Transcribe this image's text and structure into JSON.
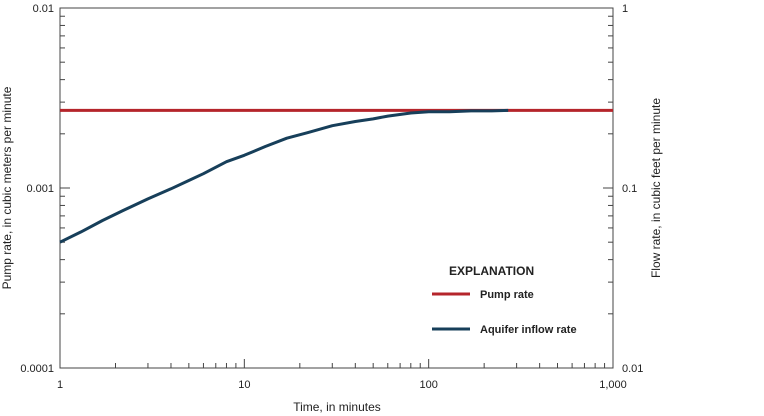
{
  "chart_data": {
    "type": "line",
    "x_scale": "log",
    "y_scale": "log",
    "xlim": [
      1,
      1000
    ],
    "ylim_left": [
      0.0001,
      0.01
    ],
    "ylim_right": [
      0.01,
      1
    ],
    "xlabel": "Time, in minutes",
    "ylabel_left": "Pump rate, in cubic meters per minute",
    "ylabel_right": "Flow rate, in cubic feet per minute",
    "x_ticks": [
      {
        "value": 1,
        "label": "1"
      },
      {
        "value": 10,
        "label": "10"
      },
      {
        "value": 100,
        "label": "100"
      },
      {
        "value": 1000,
        "label": "1,000"
      }
    ],
    "y_ticks_left": [
      {
        "value": 0.0001,
        "label": "0.0001"
      },
      {
        "value": 0.001,
        "label": "0.001"
      },
      {
        "value": 0.01,
        "label": "0.01"
      }
    ],
    "y_ticks_right": [
      {
        "value": 0.01,
        "label": "0.01"
      },
      {
        "value": 0.1,
        "label": "0.1"
      },
      {
        "value": 1,
        "label": "1"
      }
    ],
    "grid": false,
    "legend": {
      "title": "EXPLANATION",
      "placement": "lower-right"
    },
    "series": [
      {
        "name": "Pump rate",
        "color": "#b5252b",
        "x": [
          1,
          1000
        ],
        "y": [
          0.0027,
          0.0027
        ]
      },
      {
        "name": "Aquifer inflow rate",
        "color": "#173f5a",
        "x": [
          1,
          1.3,
          1.7,
          2.2,
          3,
          4,
          5,
          6,
          8,
          10,
          13,
          17,
          22,
          30,
          40,
          50,
          60,
          80,
          100,
          130,
          170,
          220,
          270
        ],
        "y": [
          0.0005,
          0.00057,
          0.00066,
          0.00075,
          0.00087,
          0.00099,
          0.0011,
          0.0012,
          0.0014,
          0.00152,
          0.0017,
          0.00189,
          0.00203,
          0.00222,
          0.00234,
          0.00242,
          0.00251,
          0.00261,
          0.00265,
          0.00265,
          0.00268,
          0.00268,
          0.0027
        ]
      }
    ]
  }
}
